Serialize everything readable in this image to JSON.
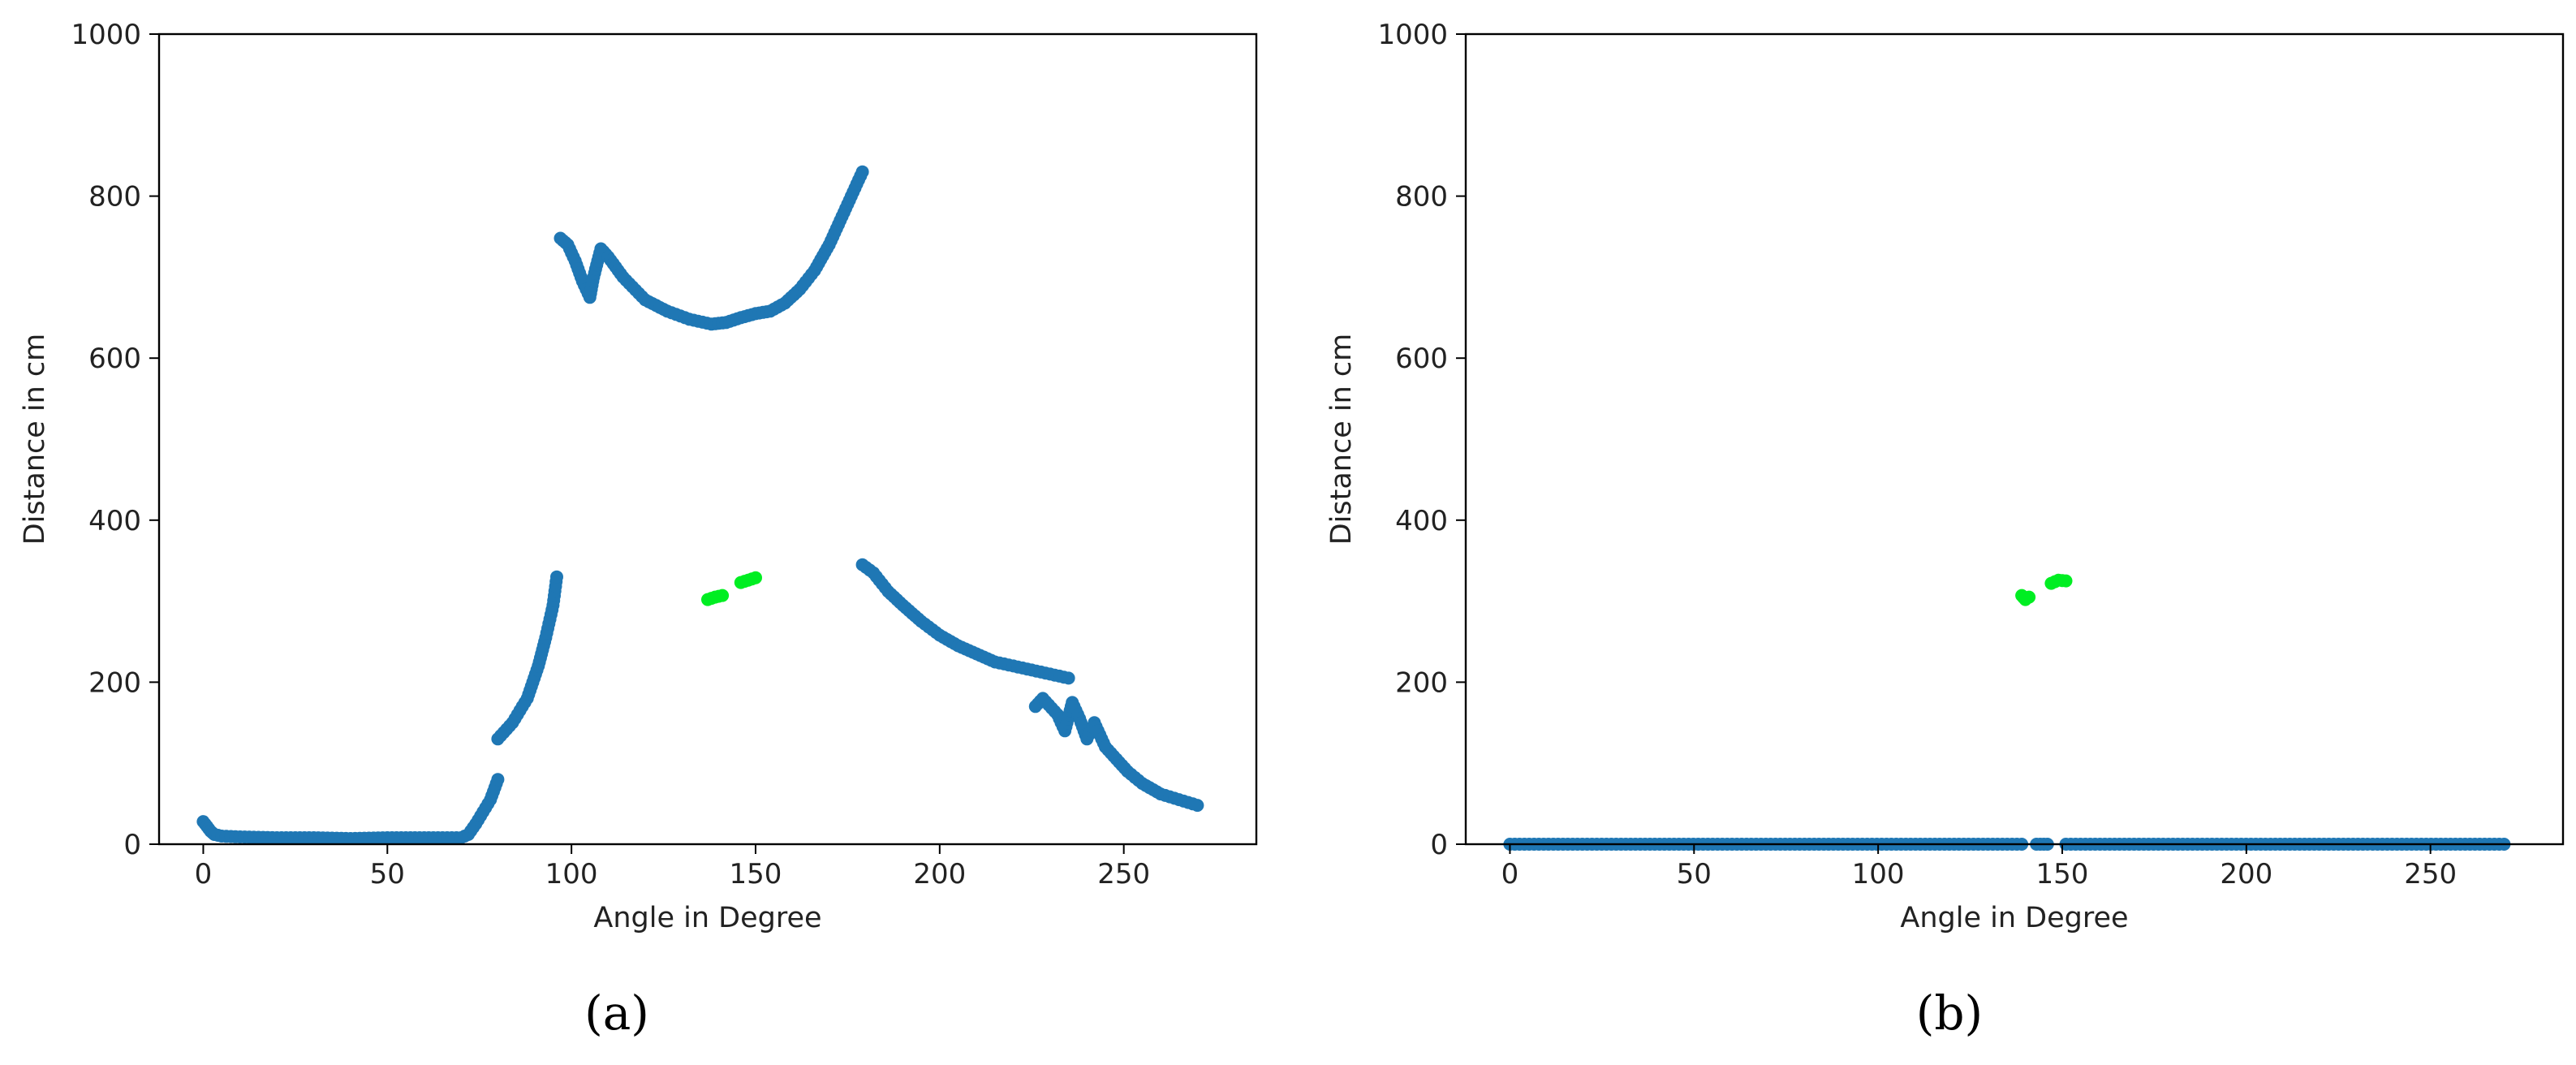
{
  "colors": {
    "scan_points": "#1f77b4",
    "detected_object": "#00ee22",
    "axes": "#000000",
    "text": "#222222"
  },
  "chart_data": [
    {
      "panel_label": "(a)",
      "type": "scatter",
      "title": "",
      "xlabel": "Angle in Degree",
      "ylabel": "Distance in cm",
      "xlim": [
        -12,
        286
      ],
      "ylim": [
        0,
        1000
      ],
      "xticks": [
        0,
        50,
        100,
        150,
        200,
        250
      ],
      "yticks": [
        0,
        200,
        400,
        600,
        800,
        1000
      ],
      "grid": false,
      "series": [
        {
          "segments": [
            [
              [
                0,
                28
              ],
              [
                1,
                22
              ],
              [
                2,
                16
              ],
              [
                3,
                12
              ],
              [
                5,
                10
              ],
              [
                10,
                9
              ],
              [
                20,
                8
              ],
              [
                30,
                8
              ],
              [
                40,
                7
              ],
              [
                50,
                8
              ],
              [
                60,
                8
              ],
              [
                70,
                8
              ],
              [
                72,
                12
              ],
              [
                74,
                25
              ],
              [
                76,
                40
              ],
              [
                78,
                55
              ],
              [
                80,
                80
              ]
            ],
            [
              [
                80,
                130
              ],
              [
                84,
                150
              ],
              [
                88,
                180
              ],
              [
                91,
                220
              ],
              [
                93,
                255
              ],
              [
                95,
                295
              ],
              [
                96,
                330
              ]
            ],
            [
              [
                97,
                748
              ],
              [
                99,
                740
              ],
              [
                101,
                720
              ],
              [
                103,
                695
              ],
              [
                105,
                675
              ],
              [
                106,
                700
              ],
              [
                108,
                735
              ],
              [
                110,
                725
              ],
              [
                114,
                700
              ],
              [
                120,
                672
              ],
              [
                126,
                658
              ],
              [
                132,
                648
              ],
              [
                138,
                642
              ],
              [
                142,
                644
              ],
              [
                146,
                650
              ],
              [
                150,
                655
              ],
              [
                154,
                658
              ],
              [
                158,
                668
              ],
              [
                162,
                685
              ],
              [
                166,
                708
              ],
              [
                170,
                740
              ],
              [
                174,
                780
              ],
              [
                177,
                810
              ],
              [
                179,
                830
              ]
            ],
            [
              [
                179,
                345
              ],
              [
                182,
                335
              ],
              [
                186,
                312
              ],
              [
                190,
                295
              ],
              [
                195,
                275
              ],
              [
                200,
                258
              ],
              [
                205,
                245
              ],
              [
                210,
                235
              ],
              [
                215,
                225
              ],
              [
                220,
                220
              ],
              [
                225,
                215
              ],
              [
                230,
                210
              ],
              [
                235,
                205
              ]
            ],
            [
              [
                226,
                170
              ],
              [
                228,
                180
              ],
              [
                232,
                160
              ],
              [
                234,
                140
              ],
              [
                236,
                175
              ],
              [
                238,
                155
              ],
              [
                240,
                130
              ],
              [
                242,
                150
              ],
              [
                245,
                120
              ],
              [
                248,
                105
              ],
              [
                251,
                90
              ],
              [
                255,
                75
              ],
              [
                260,
                62
              ],
              [
                265,
                55
              ],
              [
                270,
                48
              ]
            ]
          ]
        },
        {
          "segments": [
            [
              [
                137,
                302
              ],
              [
                139,
                305
              ],
              [
                141,
                307
              ]
            ],
            [
              [
                146,
                323
              ],
              [
                148,
                326
              ],
              [
                150,
                329
              ]
            ]
          ]
        }
      ]
    },
    {
      "panel_label": "(b)",
      "type": "scatter",
      "title": "",
      "xlabel": "Angle in Degree",
      "ylabel": "Distance in cm",
      "xlim": [
        -12,
        286
      ],
      "ylim": [
        0,
        1000
      ],
      "xticks": [
        0,
        50,
        100,
        150,
        200,
        250
      ],
      "yticks": [
        0,
        200,
        400,
        600,
        800,
        1000
      ],
      "grid": false,
      "series": [
        {
          "segments": [
            [
              [
                0,
                0
              ],
              [
                139,
                0
              ]
            ],
            [
              [
                143,
                0
              ],
              [
                146,
                0
              ]
            ],
            [
              [
                151,
                0
              ],
              [
                270,
                0
              ]
            ]
          ]
        },
        {
          "segments": [
            [
              [
                139,
                307
              ],
              [
                140,
                302
              ],
              [
                141,
                305
              ]
            ],
            [
              [
                147,
                322
              ],
              [
                149,
                326
              ],
              [
                151,
                325
              ]
            ]
          ]
        }
      ]
    }
  ]
}
